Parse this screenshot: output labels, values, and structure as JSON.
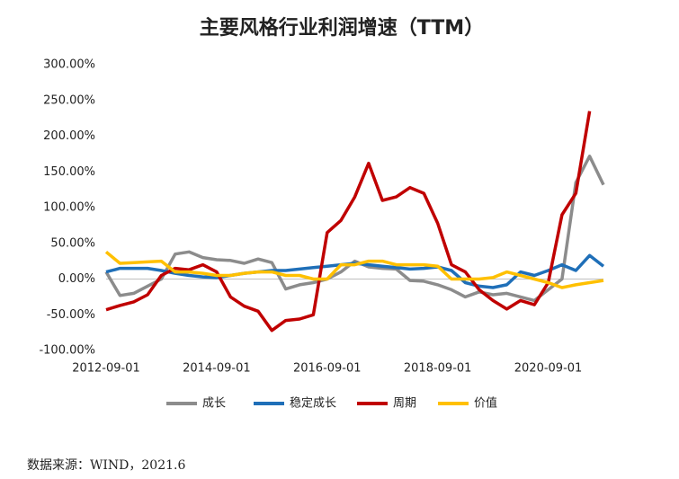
{
  "chart_data": {
    "type": "line",
    "title": "主要风格行业利润增速（TTM）",
    "categories": [
      "2012-09-01",
      null,
      null,
      null,
      null,
      null,
      null,
      null,
      "2014-09-01",
      null,
      null,
      null,
      null,
      null,
      null,
      null,
      "2016-09-01",
      null,
      null,
      null,
      null,
      null,
      null,
      null,
      "2018-09-01",
      null,
      null,
      null,
      null,
      null,
      null,
      null,
      "2020-09-01",
      null,
      null,
      null,
      null
    ],
    "series": [
      {
        "name": "成长",
        "color": "#8c8c8c",
        "values": [
          10,
          -23,
          -20,
          -10,
          0,
          35,
          38,
          30,
          27,
          26,
          22,
          28,
          23,
          -14,
          -8,
          -5,
          0,
          10,
          25,
          17,
          15,
          14,
          -2,
          -3,
          -8,
          -15,
          -25,
          -18,
          -22,
          -20,
          -25,
          -30,
          -15,
          0,
          135,
          172,
          132
        ]
      },
      {
        "name": "稳定成长",
        "color": "#1f6fb8",
        "values": [
          10,
          15,
          15,
          15,
          12,
          8,
          5,
          3,
          2,
          5,
          8,
          10,
          12,
          12,
          14,
          16,
          18,
          20,
          22,
          20,
          18,
          16,
          14,
          15,
          17,
          12,
          -5,
          -10,
          -12,
          -8,
          10,
          5,
          12,
          20,
          12,
          33,
          18
        ]
      },
      {
        "name": "周期",
        "color": "#c00000",
        "values": [
          -43,
          -37,
          -32,
          -22,
          5,
          15,
          13,
          20,
          10,
          -25,
          -38,
          -45,
          -72,
          -58,
          -56,
          -50,
          65,
          82,
          115,
          162,
          110,
          115,
          128,
          120,
          78,
          20,
          10,
          -15,
          -30,
          -42,
          -30,
          -36,
          -5,
          90,
          120,
          235,
          null
        ]
      },
      {
        "name": "价值",
        "color": "#ffc000",
        "values": [
          38,
          22,
          23,
          24,
          25,
          10,
          10,
          8,
          5,
          5,
          8,
          10,
          10,
          5,
          5,
          0,
          0,
          20,
          20,
          25,
          25,
          20,
          20,
          20,
          18,
          0,
          0,
          0,
          2,
          10,
          5,
          0,
          -5,
          -12,
          -8,
          -5,
          -2
        ]
      }
    ],
    "ylim": [
      -100,
      300
    ],
    "yticks": [
      {
        "value": -100,
        "label": "-100.00%"
      },
      {
        "value": -50,
        "label": "-50.00%"
      },
      {
        "value": 0,
        "label": "0.00%"
      },
      {
        "value": 50,
        "label": "50.00%"
      },
      {
        "value": 100,
        "label": "100.00%"
      },
      {
        "value": 150,
        "label": "150.00%"
      },
      {
        "value": 200,
        "label": "200.00%"
      },
      {
        "value": 250,
        "label": "250.00%"
      },
      {
        "value": 300,
        "label": "300.00%"
      }
    ],
    "grid": false,
    "legend": "bottom"
  },
  "source": "数据来源：WIND，2021.6"
}
